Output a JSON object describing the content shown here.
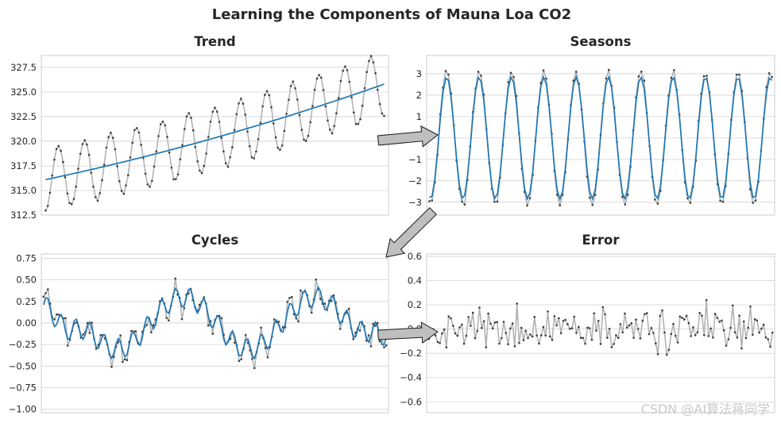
{
  "figure": {
    "title": "Learning the Components of Mauna Loa CO2",
    "watermark": "CSDN @AI算法蒋同学"
  },
  "colors": {
    "observed": "#b3b3b3",
    "fitted": "#1f77b4",
    "dots": "#3b3b3b",
    "grid": "#d2d2d2",
    "arrow_fill": "#bfbfbf"
  },
  "chart_data": [
    {
      "id": "trend",
      "type": "line",
      "title": "Trend",
      "ylim": [
        312.5,
        328.7
      ],
      "yticks": [
        312.5,
        315.0,
        317.5,
        320.0,
        322.5,
        325.0,
        327.5
      ],
      "ytick_labels": [
        "312.5",
        "315.0",
        "317.5",
        "320.0",
        "322.5",
        "325.0",
        "327.5"
      ],
      "x_range": [
        0,
        156
      ],
      "series": [
        {
          "role": "observed",
          "generator": "trend+season",
          "trend_start": 316.1,
          "trend_end": 325.8,
          "amplitude": 3.2,
          "period": 12,
          "phase": -1.5
        },
        {
          "role": "fitted",
          "generator": "trend",
          "start": 316.1,
          "end": 325.8,
          "curvature": 0.25
        }
      ]
    },
    {
      "id": "seasons",
      "type": "line",
      "title": "Seasons",
      "ylim": [
        -3.6,
        3.85
      ],
      "yticks": [
        -3,
        -2,
        -1,
        0,
        1,
        2,
        3
      ],
      "ytick_labels": [
        "−3",
        "−2",
        "−1",
        "0",
        "1",
        "2",
        "3"
      ],
      "x_range": [
        0,
        126
      ],
      "series": [
        {
          "role": "observed",
          "generator": "season+noise",
          "amplitude": 3.1,
          "period": 11.9,
          "phase": -1.8,
          "noise": 0.25
        },
        {
          "role": "fitted",
          "generator": "season",
          "amplitude": 2.85,
          "period": 11.9,
          "phase": -1.8
        }
      ]
    },
    {
      "id": "cycles",
      "type": "line",
      "title": "Cycles",
      "ylim": [
        -1.04,
        0.8
      ],
      "yticks": [
        -1.0,
        -0.75,
        -0.5,
        -0.25,
        0.0,
        0.25,
        0.5,
        0.75
      ],
      "ytick_labels": [
        "−1.00",
        "−0.75",
        "−0.50",
        "−0.25",
        "0.00",
        "0.25",
        "0.50",
        "0.75"
      ],
      "x_range": [
        0,
        156
      ],
      "series": [
        {
          "role": "observed",
          "generator": "cycles+noise",
          "noise": 0.18
        },
        {
          "role": "fitted",
          "generator": "cycles"
        }
      ]
    },
    {
      "id": "error",
      "type": "line",
      "title": "Error",
      "ylim": [
        -0.69,
        0.62
      ],
      "yticks": [
        -0.6,
        -0.4,
        -0.2,
        0.0,
        0.2,
        0.4,
        0.6
      ],
      "ytick_labels": [
        "−0.6",
        "−0.4",
        "−0.2",
        "0.0",
        "0.2",
        "0.4",
        "0.6"
      ],
      "x_range": [
        0,
        156
      ],
      "series": [
        {
          "role": "observed",
          "generator": "noise",
          "spread": 0.27
        }
      ]
    }
  ]
}
